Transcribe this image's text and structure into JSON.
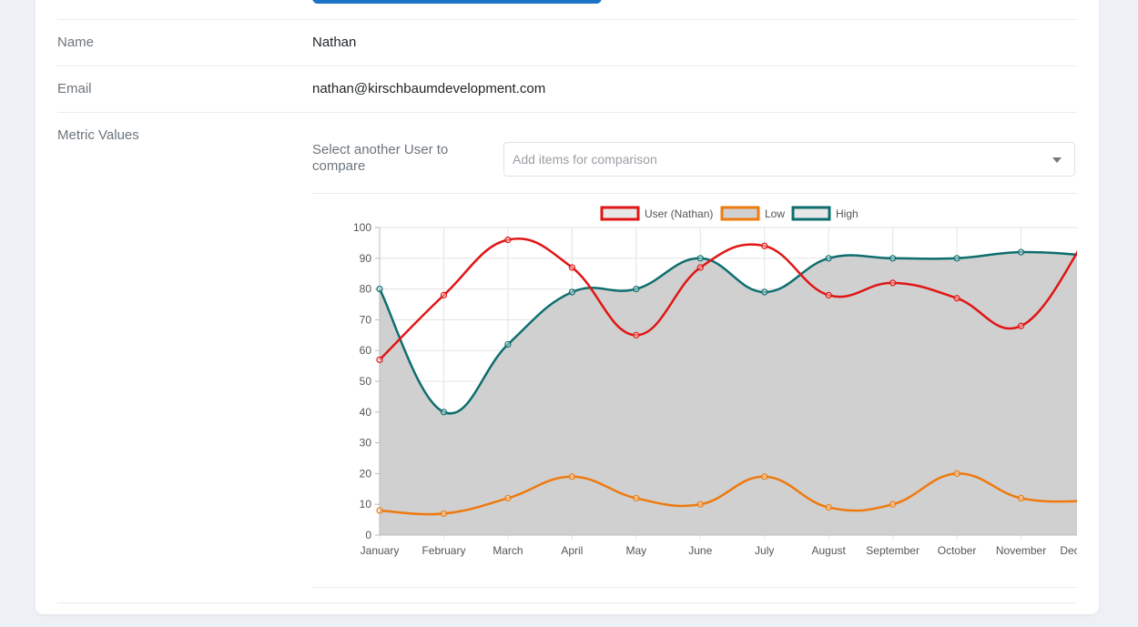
{
  "fields": {
    "name_label": "Name",
    "name_value": "Nathan",
    "email_label": "Email",
    "email_value": "nathan@kirschbaumdevelopment.com",
    "metrics_label": "Metric Values"
  },
  "compare": {
    "label": "Select another User to compare",
    "placeholder": "Add items for comparison"
  },
  "colors": {
    "user": "#e01515",
    "low": "#ee7a0e",
    "high": "#0e6e6e",
    "fill": "#d0d0d0"
  },
  "chart_data": {
    "type": "line",
    "categories": [
      "January",
      "February",
      "March",
      "April",
      "May",
      "June",
      "July",
      "August",
      "September",
      "October",
      "November",
      "December"
    ],
    "series": [
      {
        "name": "User (Nathan)",
        "values": [
          57,
          78,
          96,
          87,
          65,
          87,
          94,
          78,
          82,
          77,
          68,
          96
        ]
      },
      {
        "name": "Low",
        "values": [
          8,
          7,
          12,
          19,
          12,
          10,
          19,
          9,
          10,
          20,
          12,
          11
        ]
      },
      {
        "name": "High",
        "values": [
          80,
          40,
          62,
          79,
          80,
          90,
          79,
          90,
          90,
          90,
          92,
          91
        ]
      }
    ],
    "ylim": [
      0,
      100
    ],
    "yticks": [
      0,
      10,
      20,
      30,
      40,
      50,
      60,
      70,
      80,
      90,
      100
    ],
    "grid": true,
    "legend": "top-center"
  }
}
